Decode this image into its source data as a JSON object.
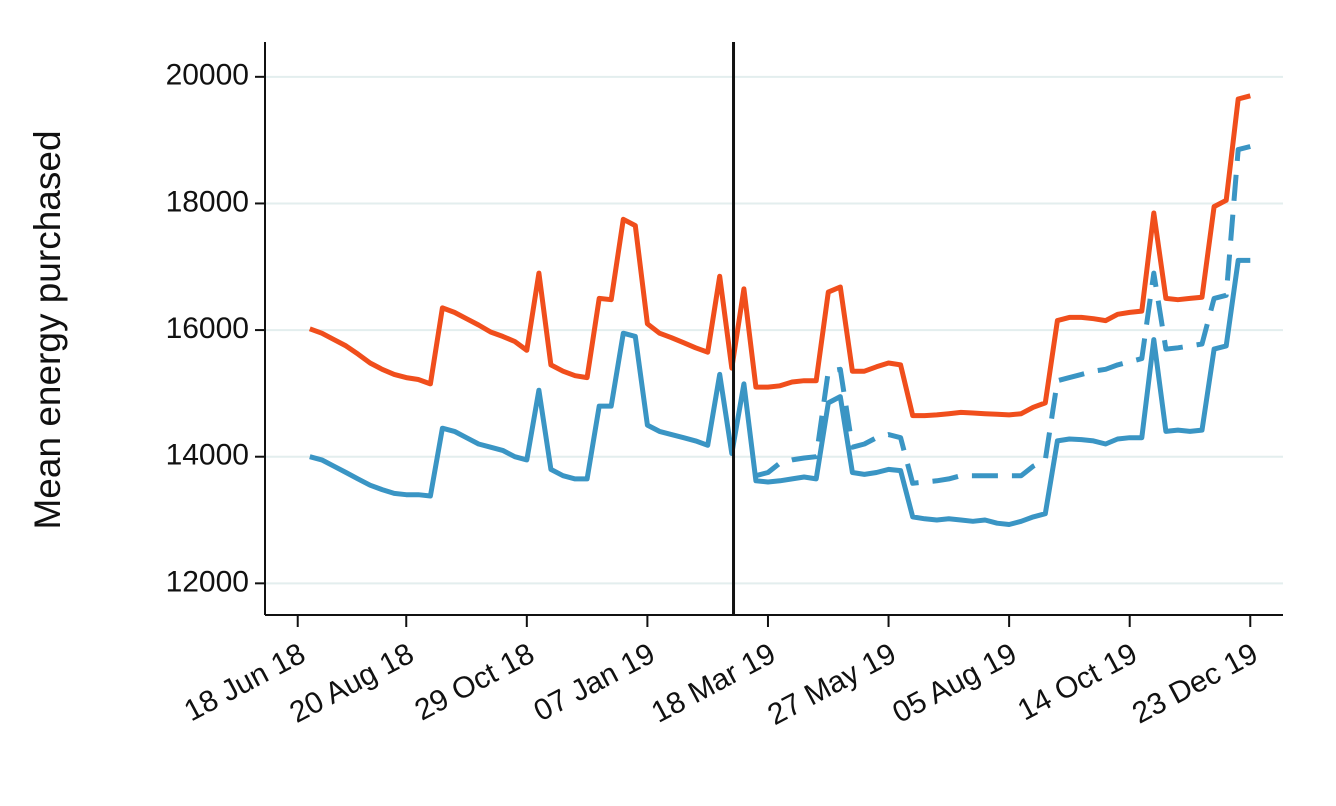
{
  "chart_data": {
    "type": "line",
    "ylabel": "Mean energy purchased",
    "x": [
      "2018-06-25",
      "2018-07-02",
      "2018-07-09",
      "2018-07-16",
      "2018-07-23",
      "2018-07-30",
      "2018-08-06",
      "2018-08-13",
      "2018-08-20",
      "2018-08-27",
      "2018-09-03",
      "2018-09-10",
      "2018-09-17",
      "2018-09-24",
      "2018-10-01",
      "2018-10-08",
      "2018-10-15",
      "2018-10-22",
      "2018-10-29",
      "2018-11-05",
      "2018-11-12",
      "2018-11-19",
      "2018-11-26",
      "2018-12-03",
      "2018-12-10",
      "2018-12-17",
      "2018-12-24",
      "2018-12-31",
      "2019-01-07",
      "2019-01-14",
      "2019-01-21",
      "2019-01-28",
      "2019-02-04",
      "2019-02-11",
      "2019-02-18",
      "2019-02-25",
      "2019-03-04",
      "2019-03-11",
      "2019-03-18",
      "2019-03-25",
      "2019-04-01",
      "2019-04-08",
      "2019-04-15",
      "2019-04-22",
      "2019-04-29",
      "2019-05-06",
      "2019-05-13",
      "2019-05-20",
      "2019-05-27",
      "2019-06-03",
      "2019-06-10",
      "2019-06-17",
      "2019-06-24",
      "2019-07-01",
      "2019-07-08",
      "2019-07-15",
      "2019-07-22",
      "2019-07-29",
      "2019-08-05",
      "2019-08-12",
      "2019-08-19",
      "2019-08-26",
      "2019-09-02",
      "2019-09-09",
      "2019-09-16",
      "2019-09-23",
      "2019-09-30",
      "2019-10-07",
      "2019-10-14",
      "2019-10-21",
      "2019-10-28",
      "2019-11-04",
      "2019-11-11",
      "2019-11-18",
      "2019-11-25",
      "2019-12-02",
      "2019-12-09",
      "2019-12-16",
      "2019-12-23"
    ],
    "series": [
      {
        "color": "#f04e1c",
        "dash": false,
        "values": [
          16020,
          15950,
          15850,
          15750,
          15620,
          15480,
          15380,
          15300,
          15250,
          15220,
          15150,
          16350,
          16280,
          16180,
          16080,
          15970,
          15900,
          15820,
          15680,
          16900,
          15450,
          15350,
          15280,
          15250,
          16500,
          16480,
          17750,
          17650,
          16100,
          15950,
          15880,
          15800,
          15720,
          15650,
          16850,
          15400,
          16650,
          15100,
          15100,
          15120,
          15180,
          15200,
          15200,
          16600,
          16680,
          15350,
          15350,
          15420,
          15480,
          15450,
          14650,
          14650,
          14660,
          14680,
          14700,
          14690,
          14680,
          14670,
          14660,
          14680,
          14780,
          14850,
          16150,
          16200,
          16200,
          16180,
          16150,
          16250,
          16280,
          16300,
          17850,
          16500,
          16480,
          16500,
          16520,
          17950,
          18050,
          19650,
          19700
        ]
      },
      {
        "color": "#3a95c4",
        "dash": false,
        "values": [
          14000,
          13950,
          13850,
          13750,
          13650,
          13550,
          13480,
          13420,
          13400,
          13400,
          13380,
          14450,
          14400,
          14300,
          14200,
          14150,
          14100,
          14000,
          13950,
          15050,
          13800,
          13700,
          13650,
          13650,
          14800,
          14800,
          15950,
          15900,
          14500,
          14400,
          14350,
          14300,
          14250,
          14180,
          15300,
          14050,
          15150,
          13620,
          13600,
          13620,
          13650,
          13680,
          13650,
          14850,
          14950,
          13750,
          13720,
          13750,
          13800,
          13780,
          13050,
          13020,
          13000,
          13020,
          13000,
          12980,
          13000,
          12950,
          12930,
          12980,
          13050,
          13100,
          14250,
          14280,
          14270,
          14250,
          14200,
          14280,
          14300,
          14300,
          15850,
          14400,
          14420,
          14400,
          14420,
          15700,
          15750,
          17100,
          17100
        ]
      },
      {
        "color": "#3a95c4",
        "dash": true,
        "values": [
          null,
          null,
          null,
          null,
          null,
          null,
          null,
          null,
          null,
          null,
          null,
          null,
          null,
          null,
          null,
          null,
          null,
          null,
          null,
          null,
          null,
          null,
          null,
          null,
          null,
          null,
          null,
          null,
          null,
          null,
          null,
          null,
          null,
          null,
          null,
          null,
          null,
          13700,
          13750,
          13900,
          13950,
          13980,
          14000,
          15350,
          15380,
          14150,
          14200,
          14300,
          14350,
          14300,
          13580,
          13600,
          13620,
          13650,
          13700,
          13700,
          13700,
          13700,
          13700,
          13700,
          13850,
          13950,
          15200,
          15250,
          15300,
          15350,
          15380,
          15450,
          15500,
          15550,
          16900,
          15700,
          15720,
          15750,
          15780,
          16500,
          16550,
          18850,
          18900
        ]
      }
    ],
    "vline": "2019-02-26",
    "xlim": [
      "2018-05-30",
      "2020-01-11"
    ],
    "xticks": [
      {
        "value": "2018-06-18",
        "label": "18 Jun 18"
      },
      {
        "value": "2018-08-20",
        "label": "20 Aug 18"
      },
      {
        "value": "2018-10-29",
        "label": "29 Oct 18"
      },
      {
        "value": "2019-01-07",
        "label": "07 Jan 19"
      },
      {
        "value": "2019-03-18",
        "label": "18 Mar 19"
      },
      {
        "value": "2019-05-27",
        "label": "27 May 19"
      },
      {
        "value": "2019-08-05",
        "label": "05 Aug 19"
      },
      {
        "value": "2019-10-14",
        "label": "14 Oct 19"
      },
      {
        "value": "2019-12-23",
        "label": "23 Dec 19"
      }
    ],
    "ylim": [
      11500,
      20550
    ],
    "yticks": [
      12000,
      14000,
      16000,
      18000,
      20000
    ],
    "grid": true
  }
}
